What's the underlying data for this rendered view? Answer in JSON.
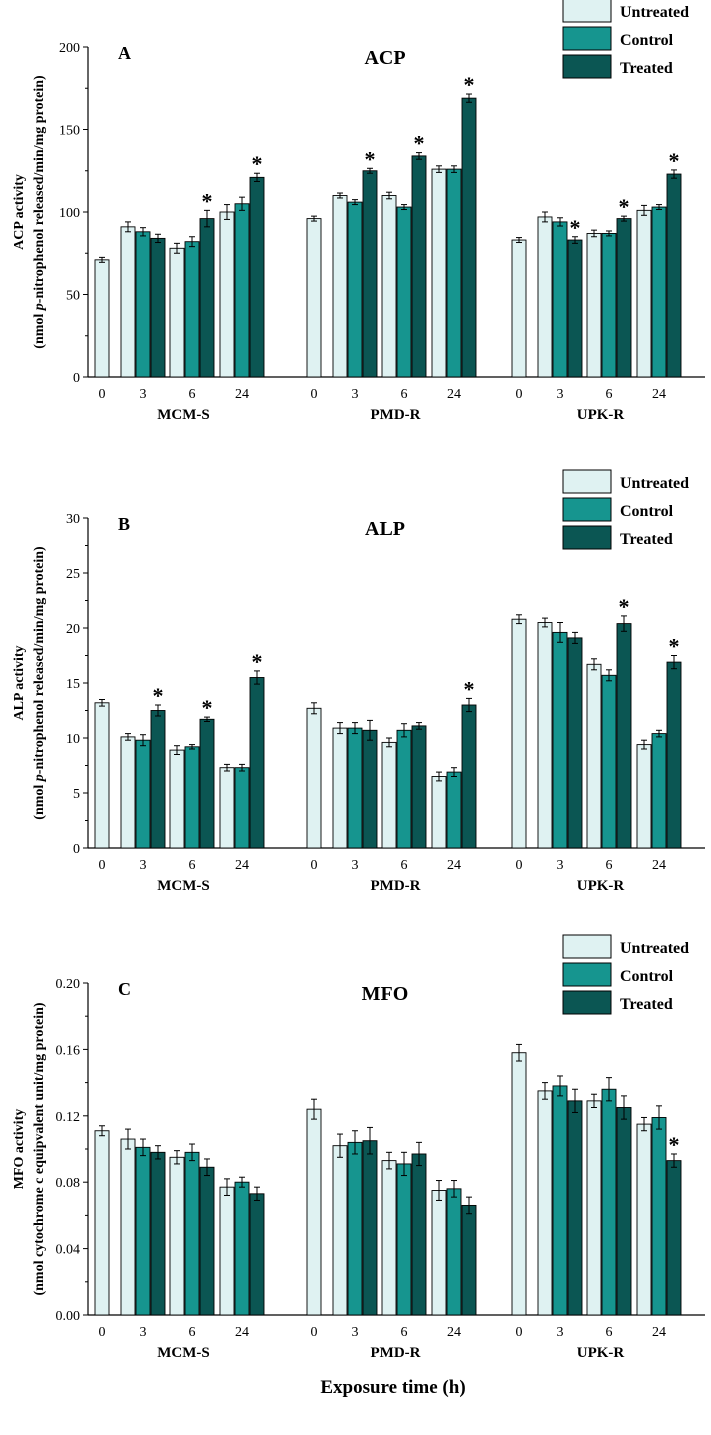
{
  "chart_data": [
    {
      "type": "bar",
      "panel": "A",
      "title": "ACP",
      "ylabel_line1": "ACP activity",
      "ylabel_line2_pre": "(nmol ",
      "ylabel_line2_italic": "p",
      "ylabel_line2_post": "-nitrophenol released/min/mg protein)",
      "ylim": [
        0,
        200
      ],
      "yticks": [
        "0",
        "50",
        "100",
        "150",
        "200"
      ],
      "ytick_values": [
        0,
        50,
        100,
        150,
        200
      ],
      "legend": [
        "Untreated",
        "Control",
        "Treated"
      ],
      "groups": [
        {
          "name": "MCM-S",
          "times": [
            "0",
            "3",
            "6",
            "24"
          ],
          "untreated": [
            71,
            91,
            78,
            100
          ],
          "untreated_err": [
            1.5,
            3,
            3,
            4.5
          ],
          "control": [
            null,
            88,
            82,
            105
          ],
          "control_err": [
            null,
            2.5,
            3,
            4
          ],
          "treated": [
            null,
            84,
            96,
            121
          ],
          "treated_err": [
            null,
            2.5,
            5,
            2.5
          ],
          "stars": [
            false,
            false,
            true,
            true
          ]
        },
        {
          "name": "PMD-R",
          "times": [
            "0",
            "3",
            "6",
            "24"
          ],
          "untreated": [
            96,
            110,
            110,
            126
          ],
          "untreated_err": [
            1.5,
            1.5,
            2,
            2
          ],
          "control": [
            null,
            106,
            103,
            126
          ],
          "control_err": [
            null,
            1.5,
            1.5,
            2
          ],
          "treated": [
            null,
            125,
            134,
            169
          ],
          "treated_err": [
            null,
            1.5,
            2,
            2.5
          ],
          "stars": [
            false,
            true,
            true,
            true
          ]
        },
        {
          "name": "UPK-R",
          "times": [
            "0",
            "3",
            "6",
            "24"
          ],
          "untreated": [
            83,
            97,
            87,
            101
          ],
          "untreated_err": [
            1.5,
            3,
            2,
            3
          ],
          "control": [
            null,
            94,
            87,
            103
          ],
          "control_err": [
            null,
            2.5,
            1.5,
            1.5
          ],
          "treated": [
            null,
            83,
            96,
            123
          ],
          "treated_err": [
            null,
            2,
            1.5,
            2.5
          ],
          "stars": [
            false,
            true,
            true,
            true
          ]
        }
      ]
    },
    {
      "type": "bar",
      "panel": "B",
      "title": "ALP",
      "ylabel_line1": "ALP activity",
      "ylabel_line2_pre": "(nmol ",
      "ylabel_line2_italic": "p",
      "ylabel_line2_post": "-nitrophenol released/min/mg protein)",
      "ylim": [
        0,
        30
      ],
      "yticks": [
        "0",
        "5",
        "10",
        "15",
        "20",
        "25",
        "30"
      ],
      "ytick_values": [
        0,
        5,
        10,
        15,
        20,
        25,
        30
      ],
      "legend": [
        "Untreated",
        "Control",
        "Treated"
      ],
      "groups": [
        {
          "name": "MCM-S",
          "times": [
            "0",
            "3",
            "6",
            "24"
          ],
          "untreated": [
            13.2,
            10.1,
            8.9,
            7.3
          ],
          "untreated_err": [
            0.3,
            0.3,
            0.4,
            0.3
          ],
          "control": [
            null,
            9.8,
            9.2,
            7.3
          ],
          "control_err": [
            null,
            0.5,
            0.2,
            0.3
          ],
          "treated": [
            null,
            12.5,
            11.7,
            15.5
          ],
          "treated_err": [
            null,
            0.5,
            0.2,
            0.6
          ],
          "stars": [
            false,
            true,
            true,
            true
          ]
        },
        {
          "name": "PMD-R",
          "times": [
            "0",
            "3",
            "6",
            "24"
          ],
          "untreated": [
            12.7,
            10.9,
            9.6,
            6.5
          ],
          "untreated_err": [
            0.5,
            0.5,
            0.4,
            0.4
          ],
          "control": [
            null,
            10.9,
            10.7,
            6.9
          ],
          "control_err": [
            null,
            0.5,
            0.6,
            0.4
          ],
          "treated": [
            null,
            10.7,
            11.1,
            13.0
          ],
          "treated_err": [
            null,
            0.9,
            0.3,
            0.6
          ],
          "stars": [
            false,
            false,
            false,
            true
          ]
        },
        {
          "name": "UPK-R",
          "times": [
            "0",
            "3",
            "6",
            "24"
          ],
          "untreated": [
            20.8,
            20.5,
            16.7,
            9.4
          ],
          "untreated_err": [
            0.4,
            0.4,
            0.5,
            0.4
          ],
          "control": [
            null,
            19.6,
            15.7,
            10.4
          ],
          "control_err": [
            null,
            0.9,
            0.5,
            0.3
          ],
          "treated": [
            null,
            19.1,
            20.4,
            16.9
          ],
          "treated_err": [
            null,
            0.5,
            0.7,
            0.6
          ],
          "stars": [
            false,
            false,
            true,
            true
          ]
        }
      ]
    },
    {
      "type": "bar",
      "panel": "C",
      "title": "MFO",
      "ylabel_line1": "MFO activity",
      "ylabel_line2_pre": "(nmol cytochrome c equipvalent unit/mg protein)",
      "ylabel_line2_italic": "",
      "ylabel_line2_post": "",
      "ylim": [
        0,
        0.2
      ],
      "yticks": [
        "0.00",
        "0.04",
        "0.08",
        "0.12",
        "0.16",
        "0.20"
      ],
      "ytick_values": [
        0,
        0.04,
        0.08,
        0.12,
        0.16,
        0.2
      ],
      "legend": [
        "Untreated",
        "Control",
        "Treated"
      ],
      "groups": [
        {
          "name": "MCM-S",
          "times": [
            "0",
            "3",
            "6",
            "24"
          ],
          "untreated": [
            0.111,
            0.106,
            0.095,
            0.077
          ],
          "untreated_err": [
            0.003,
            0.006,
            0.004,
            0.005
          ],
          "control": [
            null,
            0.101,
            0.098,
            0.08
          ],
          "control_err": [
            null,
            0.005,
            0.005,
            0.003
          ],
          "treated": [
            null,
            0.098,
            0.089,
            0.073
          ],
          "treated_err": [
            null,
            0.004,
            0.005,
            0.004
          ],
          "stars": [
            false,
            false,
            false,
            false
          ]
        },
        {
          "name": "PMD-R",
          "times": [
            "0",
            "3",
            "6",
            "24"
          ],
          "untreated": [
            0.124,
            0.102,
            0.093,
            0.075
          ],
          "untreated_err": [
            0.006,
            0.007,
            0.005,
            0.006
          ],
          "control": [
            null,
            0.104,
            0.091,
            0.076
          ],
          "control_err": [
            null,
            0.007,
            0.007,
            0.005
          ],
          "treated": [
            null,
            0.105,
            0.097,
            0.066
          ],
          "treated_err": [
            null,
            0.008,
            0.007,
            0.005
          ],
          "stars": [
            false,
            false,
            false,
            false
          ]
        },
        {
          "name": "UPK-R",
          "times": [
            "0",
            "3",
            "6",
            "24"
          ],
          "untreated": [
            0.158,
            0.135,
            0.129,
            0.115
          ],
          "untreated_err": [
            0.005,
            0.005,
            0.004,
            0.004
          ],
          "control": [
            null,
            0.138,
            0.136,
            0.119
          ],
          "control_err": [
            null,
            0.006,
            0.007,
            0.007
          ],
          "treated": [
            null,
            0.129,
            0.125,
            0.093
          ],
          "treated_err": [
            null,
            0.007,
            0.007,
            0.004
          ],
          "stars": [
            false,
            false,
            false,
            true
          ]
        }
      ]
    }
  ],
  "star_symbol": "*",
  "xlabel": "Exposure time (h)",
  "colors": {
    "untreated": "#dff2f2",
    "control": "#16958f",
    "treated": "#0b5653",
    "stroke": "#000000"
  }
}
